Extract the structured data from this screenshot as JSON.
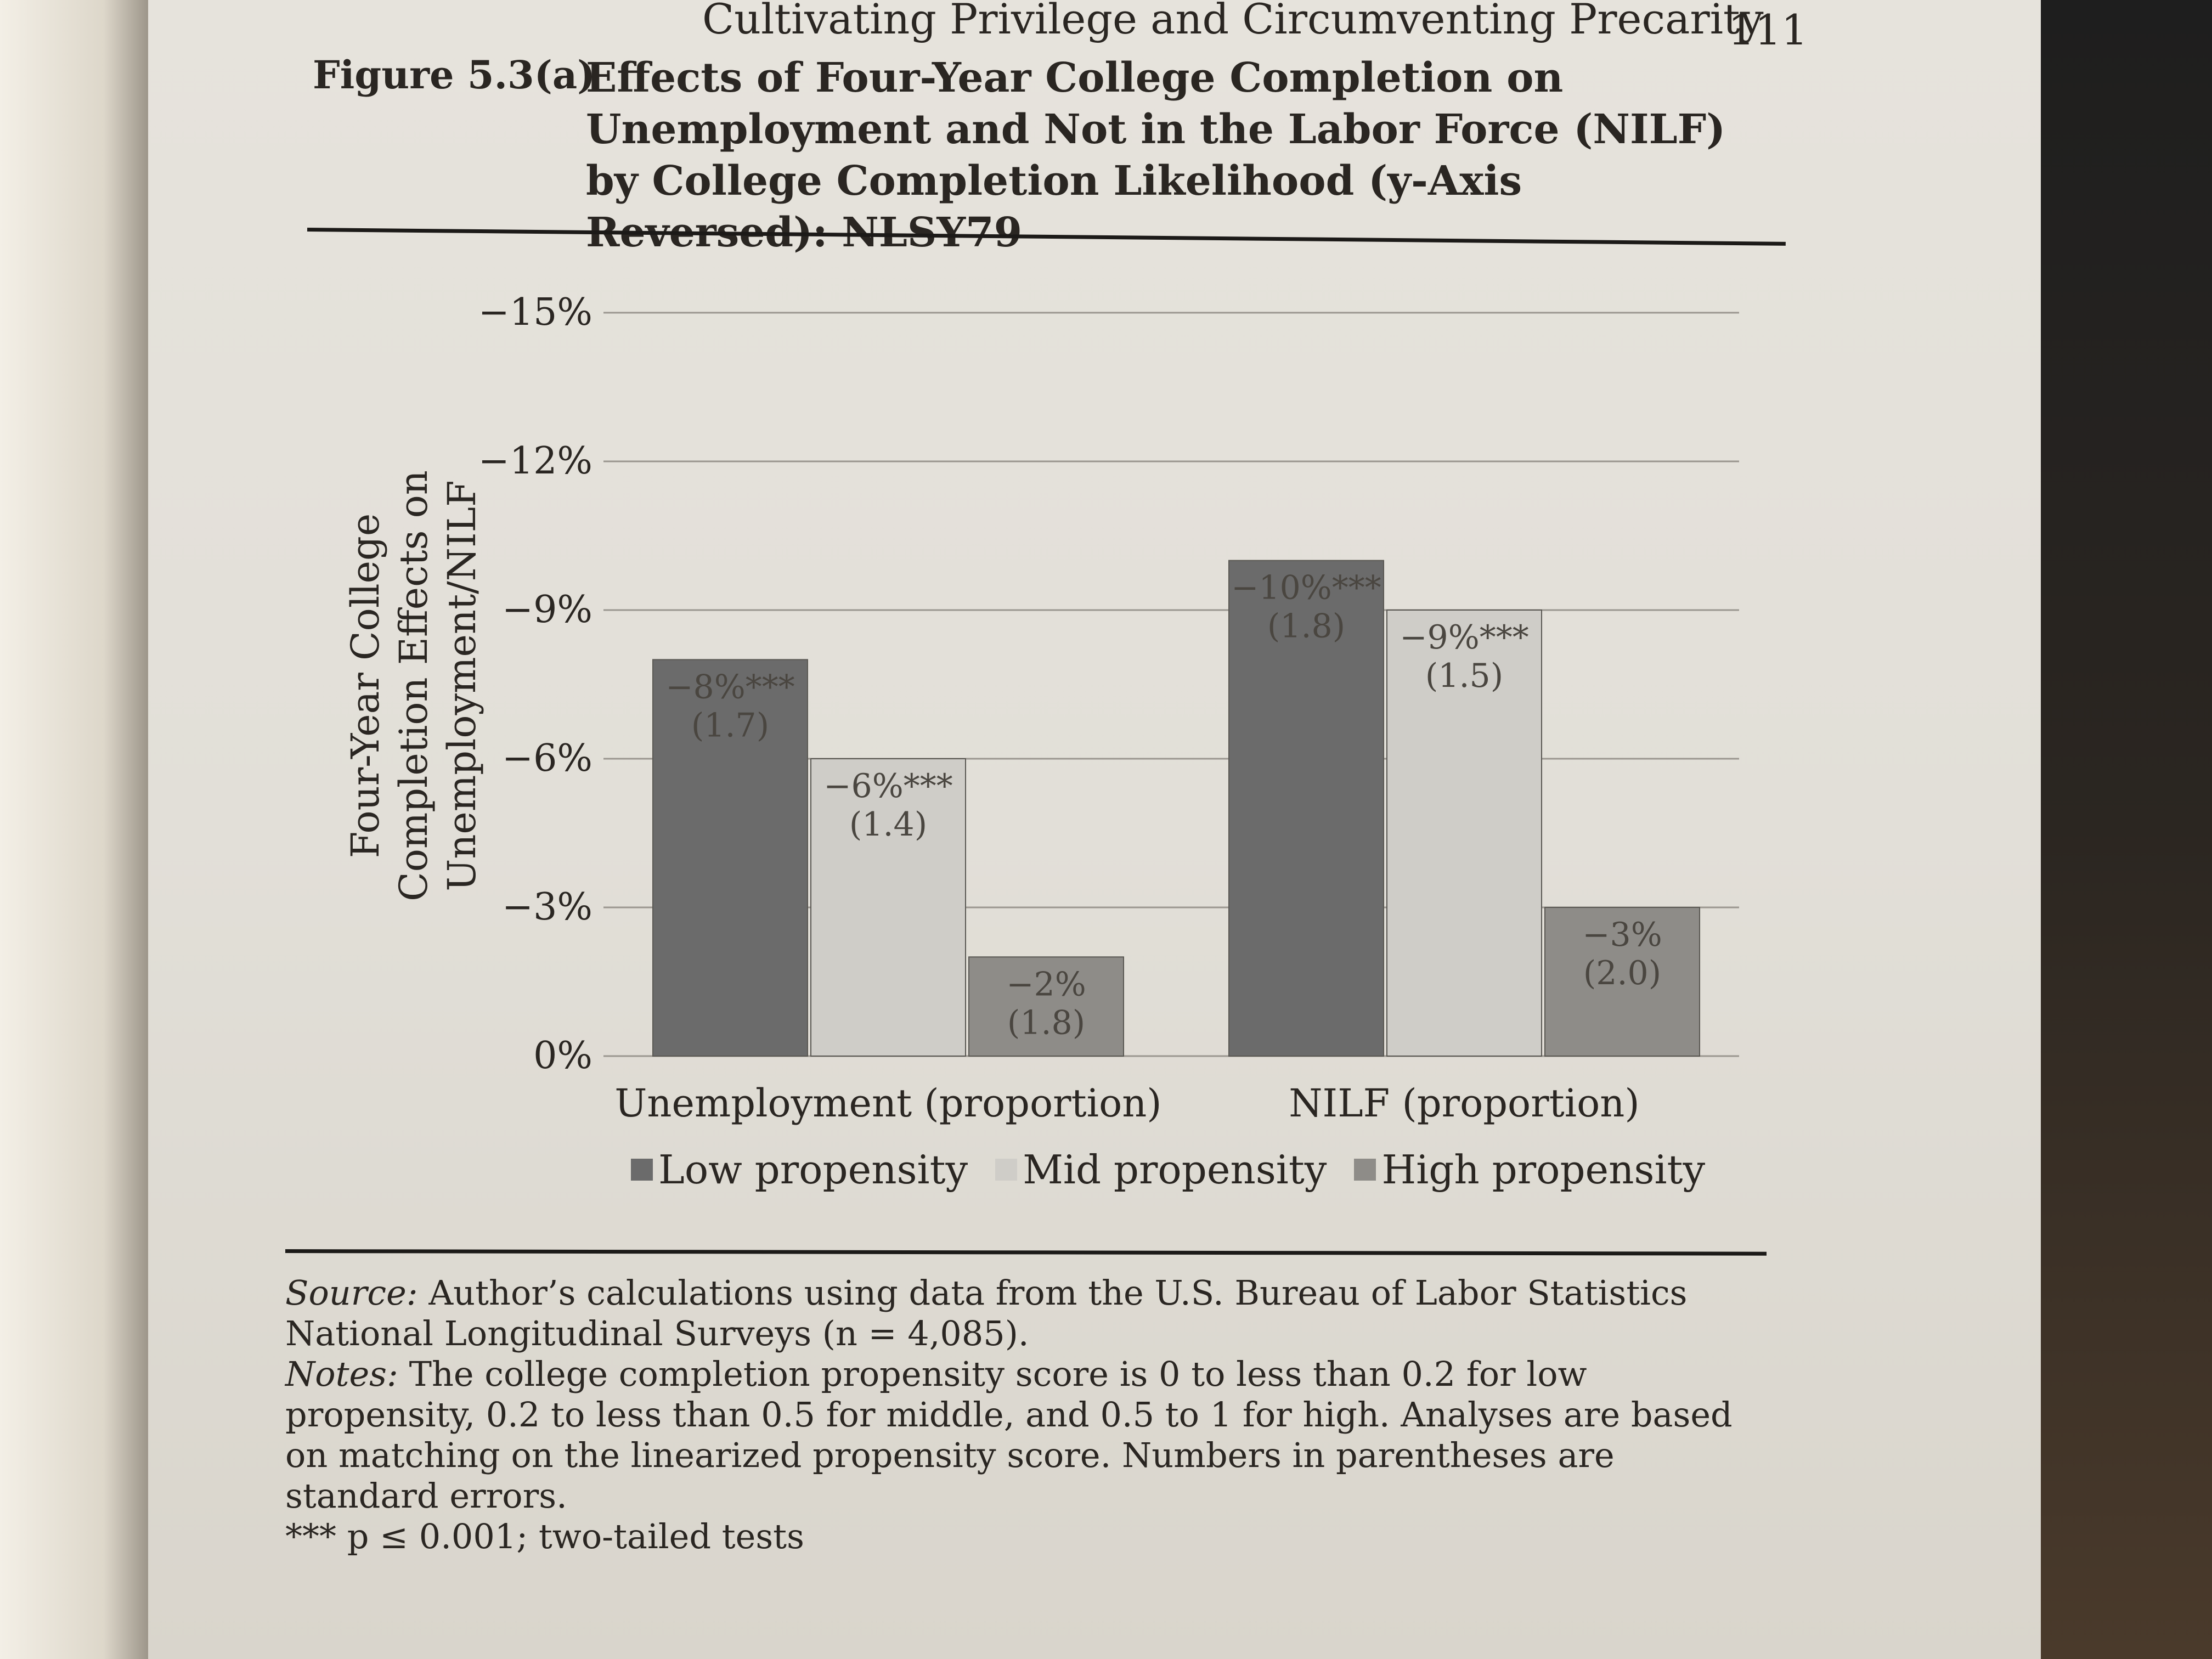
{
  "running_head": "Cultivating Privilege and Circumventing Precarity",
  "page_number": "111",
  "figure": {
    "label": "Figure 5.3(a)",
    "title": "Effects of Four-Year College Completion on Unemployment and Not in the Labor Force (NILF) by College Completion Likelihood (y-Axis Reversed): NLSY79"
  },
  "chart_data": {
    "type": "bar",
    "categories": [
      "Unemployment (proportion)",
      "NILF (proportion)"
    ],
    "series": [
      {
        "name": "Low propensity",
        "values": [
          -8,
          -10
        ],
        "labels": [
          "−8%***",
          "−10%***"
        ],
        "se": [
          "(1.7)",
          "(1.8)"
        ],
        "color": "#6b6b6b"
      },
      {
        "name": "Mid propensity",
        "values": [
          -6,
          -9
        ],
        "labels": [
          "−6%***",
          "−9%***"
        ],
        "se": [
          "(1.4)",
          "(1.5)"
        ],
        "color": "#cfcdc8"
      },
      {
        "name": "High propensity",
        "values": [
          -2,
          -3
        ],
        "labels": [
          "−2%",
          "−3%"
        ],
        "se": [
          "(1.8)",
          "(2.0)"
        ],
        "color": "#8e8c88"
      }
    ],
    "ylabel": "Four-Year College Completion Effects on Unemployment/NILF",
    "ylim": [
      0,
      -15
    ],
    "y_reversed": true,
    "yticks": [
      "−15%",
      "−12%",
      "−9%",
      "−6%",
      "−3%",
      "0%"
    ],
    "ytick_values": [
      -15,
      -12,
      -9,
      -6,
      -3,
      0
    ],
    "grid": true,
    "legend_position": "bottom"
  },
  "notes": {
    "source_label": "Source:",
    "source_text": " Author’s calculations using data from the U.S. Bureau of Labor Statistics National Longitudinal Surveys (n = 4,085).",
    "notes_label": "Notes:",
    "notes_text": " The college completion propensity score is 0 to less than 0.2 for low propensity, 0.2 to less than 0.5 for middle, and 0.5 to 1 for high. Analyses are based on matching on the linearized propensity score. Numbers in parentheses are standard errors.",
    "significance": "*** p ≤ 0.001; two-tailed tests"
  }
}
